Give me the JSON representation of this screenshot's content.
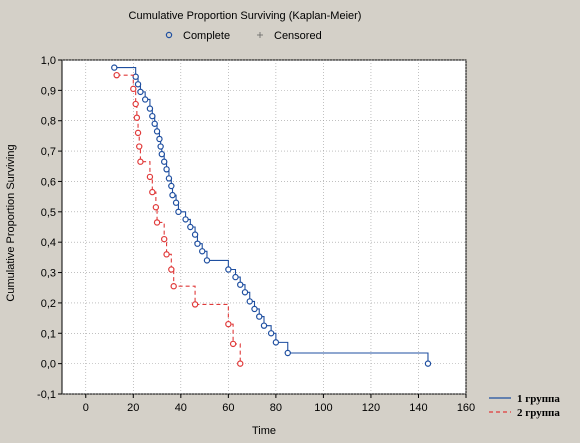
{
  "chart_data": {
    "type": "line",
    "title": "Cumulative Proportion Surviving (Kaplan-Meier)",
    "xlabel": "Time",
    "ylabel": "Cumulative Proportion Surviving",
    "xlim": [
      -10,
      160
    ],
    "ylim": [
      -0.1,
      1.0
    ],
    "x_ticks": [
      0,
      20,
      40,
      60,
      80,
      100,
      120,
      140,
      160
    ],
    "y_ticks": [
      -0.1,
      0.0,
      0.1,
      0.2,
      0.3,
      0.4,
      0.5,
      0.6,
      0.7,
      0.8,
      0.9,
      1.0
    ],
    "y_tick_labels": [
      "-0,1",
      "0,0",
      "0,1",
      "0,2",
      "0,3",
      "0,4",
      "0,5",
      "0,6",
      "0,7",
      "0,8",
      "0,9",
      "1,0"
    ],
    "grid": true,
    "marker_legend": [
      {
        "label": "Complete",
        "marker": "circle"
      },
      {
        "label": "Censored",
        "marker": "plus"
      }
    ],
    "legend_position": "bottom-right",
    "series": [
      {
        "name": "1 группа",
        "color": "#1f4fa0",
        "style": "solid",
        "points": [
          [
            12,
            0.975
          ],
          [
            21,
            0.945
          ],
          [
            22,
            0.92
          ],
          [
            23,
            0.895
          ],
          [
            25,
            0.87
          ],
          [
            27,
            0.84
          ],
          [
            28,
            0.815
          ],
          [
            29,
            0.79
          ],
          [
            30,
            0.765
          ],
          [
            31,
            0.74
          ],
          [
            31.5,
            0.715
          ],
          [
            32,
            0.69
          ],
          [
            33,
            0.665
          ],
          [
            34,
            0.64
          ],
          [
            35,
            0.61
          ],
          [
            36,
            0.585
          ],
          [
            36.5,
            0.555
          ],
          [
            38,
            0.53
          ],
          [
            39,
            0.5
          ],
          [
            42,
            0.475
          ],
          [
            44,
            0.45
          ],
          [
            46,
            0.425
          ],
          [
            47,
            0.395
          ],
          [
            49,
            0.37
          ],
          [
            51,
            0.34
          ],
          [
            60,
            0.31
          ],
          [
            63,
            0.285
          ],
          [
            65,
            0.26
          ],
          [
            67,
            0.235
          ],
          [
            69,
            0.205
          ],
          [
            71,
            0.18
          ],
          [
            73,
            0.155
          ],
          [
            75,
            0.125
          ],
          [
            78,
            0.1
          ],
          [
            80,
            0.07
          ],
          [
            85,
            0.035
          ],
          [
            144,
            0.0
          ]
        ]
      },
      {
        "name": "2 группа",
        "color": "#e03a3a",
        "style": "dashed",
        "points": [
          [
            13,
            0.95
          ],
          [
            20,
            0.905
          ],
          [
            21,
            0.855
          ],
          [
            21.5,
            0.81
          ],
          [
            22,
            0.76
          ],
          [
            22.5,
            0.715
          ],
          [
            23,
            0.665
          ],
          [
            27,
            0.615
          ],
          [
            28,
            0.565
          ],
          [
            29.5,
            0.515
          ],
          [
            30,
            0.465
          ],
          [
            33,
            0.41
          ],
          [
            34,
            0.36
          ],
          [
            36,
            0.31
          ],
          [
            37,
            0.255
          ],
          [
            46,
            0.195
          ],
          [
            60,
            0.13
          ],
          [
            62,
            0.065
          ],
          [
            65,
            0.0
          ]
        ]
      }
    ]
  }
}
